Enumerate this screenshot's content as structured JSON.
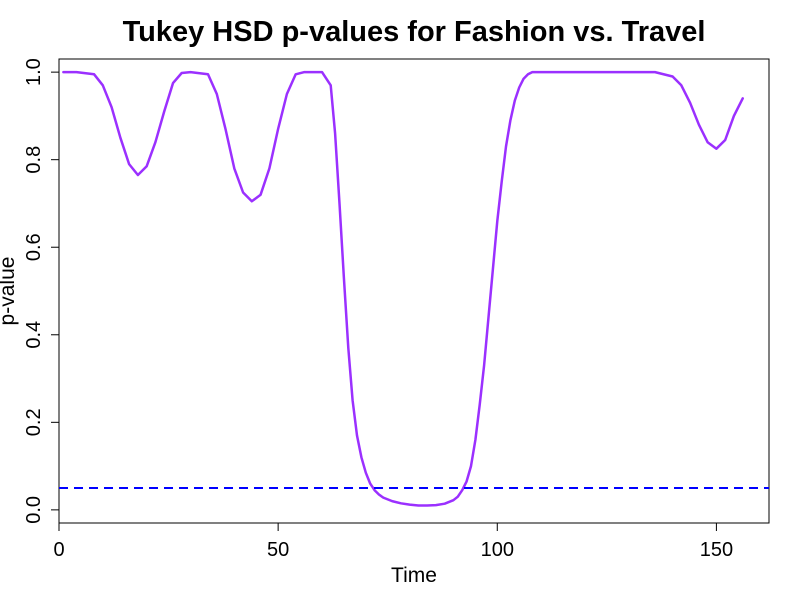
{
  "chart_data": {
    "type": "line",
    "title": "Tukey HSD p-values for Fashion vs. Travel",
    "xlabel": "Time",
    "ylabel": "p-value",
    "xlim": [
      0,
      162
    ],
    "ylim": [
      -0.03,
      1.03
    ],
    "x_ticks": [
      0,
      50,
      100,
      150
    ],
    "y_ticks": [
      0.0,
      0.2,
      0.4,
      0.6,
      0.8,
      1.0
    ],
    "x_tick_labels": [
      "0",
      "50",
      "100",
      "150"
    ],
    "y_tick_labels": [
      "0.0",
      "0.2",
      "0.4",
      "0.6",
      "0.8",
      "1.0"
    ],
    "grid": false,
    "series": [
      {
        "color": "#9B30FF",
        "x": [
          1,
          4,
          8,
          10,
          12,
          14,
          16,
          18,
          20,
          22,
          24,
          26,
          28,
          30,
          34,
          36,
          38,
          40,
          42,
          44,
          46,
          48,
          50,
          52,
          54,
          56,
          60,
          62,
          63,
          64,
          65,
          66,
          67,
          68,
          69,
          70,
          71,
          72,
          73,
          74,
          76,
          78,
          80,
          82,
          84,
          86,
          88,
          90,
          91,
          92,
          93,
          94,
          95,
          96,
          97,
          98,
          99,
          100,
          101,
          102,
          103,
          104,
          105,
          106,
          107,
          108,
          110,
          112,
          120,
          130,
          136,
          140,
          142,
          144,
          146,
          148,
          150,
          152,
          154,
          156
        ],
        "y": [
          1.0,
          1.0,
          0.995,
          0.97,
          0.92,
          0.85,
          0.79,
          0.765,
          0.785,
          0.84,
          0.91,
          0.975,
          0.998,
          1.0,
          0.995,
          0.95,
          0.87,
          0.78,
          0.725,
          0.705,
          0.72,
          0.78,
          0.87,
          0.95,
          0.995,
          1.0,
          1.0,
          0.97,
          0.86,
          0.7,
          0.53,
          0.37,
          0.25,
          0.17,
          0.12,
          0.085,
          0.06,
          0.045,
          0.035,
          0.028,
          0.02,
          0.015,
          0.012,
          0.01,
          0.01,
          0.011,
          0.014,
          0.022,
          0.03,
          0.045,
          0.065,
          0.1,
          0.16,
          0.24,
          0.33,
          0.44,
          0.55,
          0.66,
          0.75,
          0.83,
          0.89,
          0.935,
          0.965,
          0.985,
          0.995,
          1.0,
          1.0,
          1.0,
          1.0,
          1.0,
          1.0,
          0.99,
          0.97,
          0.93,
          0.88,
          0.84,
          0.825,
          0.845,
          0.9,
          0.94
        ]
      }
    ],
    "reference_line": {
      "y": 0.05,
      "color": "#0000FF",
      "style": "dashed"
    }
  }
}
